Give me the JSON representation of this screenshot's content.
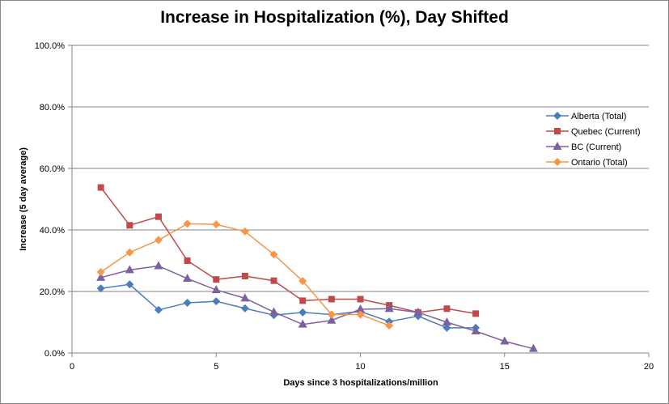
{
  "chart_data": {
    "type": "line",
    "title": "Increase in Hospitalization (%), Day Shifted",
    "xlabel": "Days  since  3 hospitalizations/million",
    "ylabel": "Increase  (5 day average)",
    "xlim": [
      0,
      20
    ],
    "ylim": [
      0,
      100
    ],
    "x_ticks": [
      0,
      5,
      10,
      15,
      20
    ],
    "x_tick_labels": [
      "0",
      "5",
      "10",
      "15",
      "20"
    ],
    "y_ticks": [
      0,
      20,
      40,
      60,
      80,
      100
    ],
    "y_tick_labels": [
      "0.0%",
      "20.0%",
      "40.0%",
      "60.0%",
      "80.0%",
      "100.0%"
    ],
    "grid": "horizontal",
    "legend_position": "right",
    "series": [
      {
        "name": "Alberta (Total)",
        "color": "#4A7EBB",
        "marker": "diamond",
        "x": [
          1,
          2,
          3,
          4,
          5,
          6,
          7,
          8,
          9,
          10,
          11,
          12,
          13,
          14
        ],
        "values": [
          21.0,
          22.3,
          14.0,
          16.3,
          16.8,
          14.5,
          12.3,
          13.2,
          12.5,
          13.5,
          10.2,
          12.0,
          8.2,
          8.2
        ]
      },
      {
        "name": "Quebec (Current)",
        "color": "#BE4B48",
        "marker": "square",
        "x": [
          1,
          2,
          3,
          4,
          5,
          6,
          7,
          8,
          9,
          10,
          11,
          12,
          13,
          14
        ],
        "values": [
          53.8,
          41.5,
          44.3,
          30.0,
          23.9,
          25.0,
          23.5,
          17.0,
          17.5,
          17.5,
          15.5,
          13.2,
          14.4,
          12.8
        ]
      },
      {
        "name": "BC (Current)",
        "color": "#7D60A0",
        "marker": "triangle",
        "x": [
          1,
          2,
          3,
          4,
          5,
          6,
          7,
          8,
          9,
          10,
          11,
          12,
          13,
          14,
          15,
          16
        ],
        "values": [
          24.5,
          27.0,
          28.3,
          24.2,
          20.5,
          17.8,
          13.3,
          9.3,
          10.6,
          14.2,
          14.4,
          13.2,
          10.0,
          7.1,
          3.8,
          1.4
        ]
      },
      {
        "name": "Ontario (Total)",
        "color": "#F79646",
        "marker": "diamond",
        "x": [
          1,
          2,
          3,
          4,
          5,
          6,
          7,
          8,
          9,
          10,
          11
        ],
        "values": [
          26.3,
          32.7,
          36.7,
          42.0,
          41.8,
          39.5,
          32.0,
          23.4,
          12.5,
          12.5,
          8.9
        ]
      }
    ]
  }
}
